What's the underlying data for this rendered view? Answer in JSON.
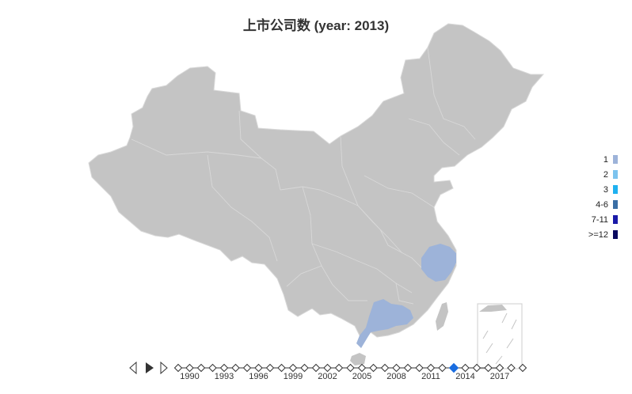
{
  "title": "上市公司数 (year: 2013)",
  "legend": [
    {
      "label": "1",
      "color": "#9db3d9"
    },
    {
      "label": "2",
      "color": "#7cc3ee"
    },
    {
      "label": "3",
      "color": "#1fb1f0"
    },
    {
      "label": "4-6",
      "color": "#3a6ea5"
    },
    {
      "label": "7-11",
      "color": "#1a1aa8"
    },
    {
      "label": ">=12",
      "color": "#0a0a60"
    }
  ],
  "colors": {
    "base_region": "#c4c4c4",
    "region_border": "#d8d8d8",
    "highlight": "#9db3d9",
    "active_year": "#1a6de0"
  },
  "highlighted_regions": [
    {
      "name": "Zhejiang",
      "bin": "1"
    },
    {
      "name": "Guangdong",
      "bin": "1"
    }
  ],
  "timeline": {
    "labels": [
      "1990",
      "1993",
      "1996",
      "1999",
      "2002",
      "2005",
      "2008",
      "2011",
      "2014",
      "2017"
    ],
    "start_year": 1989,
    "end_year": 2019,
    "current_year": 2013,
    "controls": [
      "prev-icon",
      "play-icon",
      "next-icon"
    ]
  }
}
